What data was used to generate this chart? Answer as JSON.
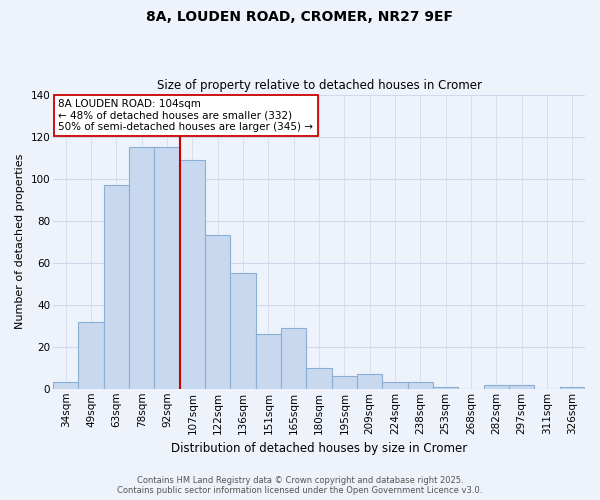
{
  "title": "8A, LOUDEN ROAD, CROMER, NR27 9EF",
  "subtitle": "Size of property relative to detached houses in Cromer",
  "xlabel": "Distribution of detached houses by size in Cromer",
  "ylabel": "Number of detached properties",
  "categories": [
    "34sqm",
    "49sqm",
    "63sqm",
    "78sqm",
    "92sqm",
    "107sqm",
    "122sqm",
    "136sqm",
    "151sqm",
    "165sqm",
    "180sqm",
    "195sqm",
    "209sqm",
    "224sqm",
    "238sqm",
    "253sqm",
    "268sqm",
    "282sqm",
    "297sqm",
    "311sqm",
    "326sqm"
  ],
  "values": [
    3,
    32,
    97,
    115,
    115,
    109,
    73,
    55,
    26,
    29,
    10,
    6,
    7,
    3,
    3,
    1,
    0,
    2,
    2,
    0,
    1
  ],
  "bar_color": "#c8d9ef",
  "bar_edge_color": "#8aafd4",
  "vline_color": "#cc0000",
  "ylim": [
    0,
    140
  ],
  "yticks": [
    0,
    20,
    40,
    60,
    80,
    100,
    120,
    140
  ],
  "annotation_text": "8A LOUDEN ROAD: 104sqm\n← 48% of detached houses are smaller (332)\n50% of semi-detached houses are larger (345) →",
  "annotation_box_color": "#ffffff",
  "annotation_box_edge": "#cc0000",
  "footer1": "Contains HM Land Registry data © Crown copyright and database right 2025.",
  "footer2": "Contains public sector information licensed under the Open Government Licence v3.0.",
  "background_color": "#eef2fa",
  "grid_color": "#d0d8ec"
}
